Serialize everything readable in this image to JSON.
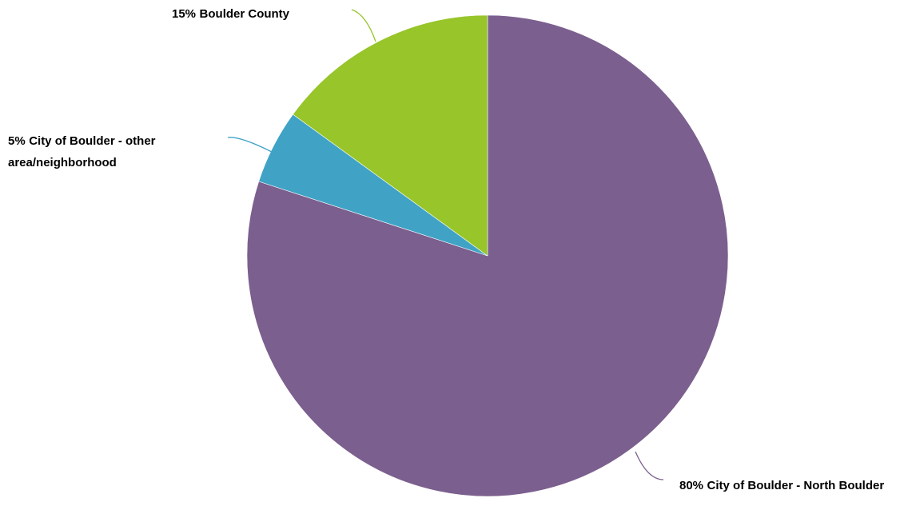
{
  "chart_data": {
    "type": "pie",
    "categories": [
      "City of Boulder - North Boulder",
      "City of Boulder - other area/neighborhood",
      "Boulder County"
    ],
    "values": [
      80,
      5,
      15
    ],
    "value_labels": [
      "80%",
      "5%",
      "15%"
    ],
    "colors": [
      "#7b5f8e",
      "#40a3c5",
      "#97c52a"
    ]
  }
}
